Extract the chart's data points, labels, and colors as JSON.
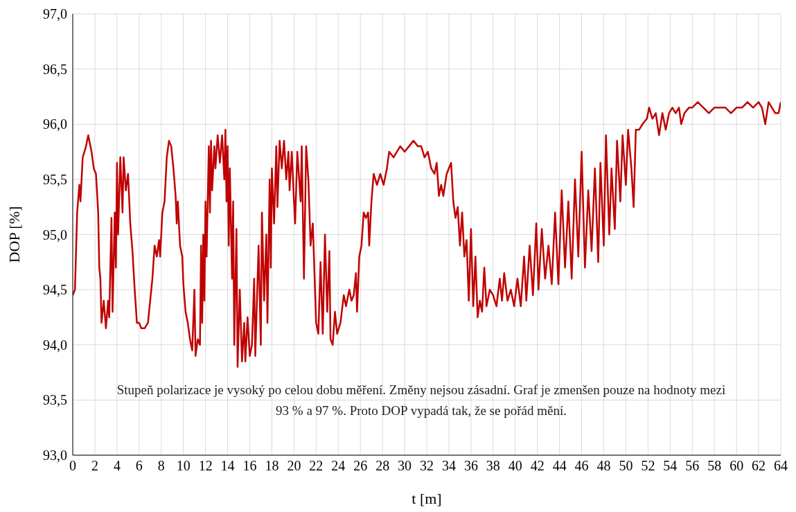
{
  "chart_data": {
    "type": "line",
    "xlabel": "t [m]",
    "ylabel": "DOP [%]",
    "annotations": [
      "Stupeň polarizace je vysoký po celou dobu měření. Změny nejsou zásadní. Graf je zmenšen pouze na hodnoty mezi 93 % a 97 %. Proto DOP vypadá tak, že se pořád mění."
    ],
    "xlim": [
      0,
      64
    ],
    "xticks": [
      0,
      2,
      4,
      6,
      8,
      10,
      12,
      14,
      16,
      18,
      20,
      22,
      24,
      26,
      28,
      30,
      32,
      34,
      36,
      38,
      40,
      42,
      44,
      46,
      48,
      50,
      52,
      54,
      56,
      58,
      60,
      62,
      64
    ],
    "ylim": [
      93,
      97
    ],
    "yticks": [
      {
        "value": 93,
        "label": "93,0"
      },
      {
        "value": 93.5,
        "label": "93,5"
      },
      {
        "value": 94,
        "label": "94,0"
      },
      {
        "value": 94.5,
        "label": "94,5"
      },
      {
        "value": 95,
        "label": "95,0"
      },
      {
        "value": 95.5,
        "label": "95,5"
      },
      {
        "value": 96,
        "label": "96,0"
      },
      {
        "value": 96.5,
        "label": "96,5"
      },
      {
        "value": 97,
        "label": "97,0"
      }
    ],
    "grid": true,
    "marker": "none",
    "line_style": "solid",
    "x": [
      0,
      0.2,
      0.4,
      0.6,
      0.7,
      0.9,
      1.2,
      1.4,
      1.7,
      1.9,
      2.1,
      2.3,
      2.4,
      2.5,
      2.6,
      2.8,
      3.0,
      3.2,
      3.3,
      3.5,
      3.6,
      3.8,
      3.9,
      4.0,
      4.1,
      4.3,
      4.5,
      4.6,
      4.8,
      5.0,
      5.2,
      5.4,
      5.6,
      5.8,
      6.0,
      6.2,
      6.5,
      6.8,
      7.0,
      7.2,
      7.4,
      7.6,
      7.8,
      7.9,
      8.1,
      8.3,
      8.5,
      8.7,
      8.9,
      9.1,
      9.3,
      9.4,
      9.5,
      9.7,
      9.9,
      10.0,
      10.2,
      10.4,
      10.6,
      10.8,
      11.0,
      11.1,
      11.3,
      11.5,
      11.6,
      11.7,
      11.8,
      11.9,
      12.0,
      12.1,
      12.3,
      12.4,
      12.5,
      12.6,
      12.8,
      12.9,
      13.1,
      13.3,
      13.5,
      13.7,
      13.8,
      13.9,
      14.0,
      14.1,
      14.2,
      14.4,
      14.5,
      14.6,
      14.8,
      14.9,
      15.1,
      15.3,
      15.5,
      15.6,
      15.8,
      16.0,
      16.2,
      16.4,
      16.5,
      16.8,
      17.0,
      17.1,
      17.3,
      17.5,
      17.6,
      17.8,
      17.9,
      18.0,
      18.2,
      18.4,
      18.5,
      18.7,
      18.9,
      19.1,
      19.3,
      19.5,
      19.6,
      19.8,
      20.0,
      20.1,
      20.3,
      20.6,
      20.7,
      20.9,
      21.1,
      21.3,
      21.5,
      21.7,
      22.0,
      22.2,
      22.4,
      22.6,
      22.8,
      23.0,
      23.2,
      23.3,
      23.5,
      23.7,
      23.9,
      24.2,
      24.5,
      24.7,
      25.0,
      25.2,
      25.4,
      25.6,
      25.7,
      25.9,
      26.1,
      26.3,
      26.5,
      26.7,
      26.8,
      27.0,
      27.2,
      27.5,
      27.8,
      28.1,
      28.4,
      28.6,
      29.0,
      29.3,
      29.6,
      30.0,
      30.4,
      30.8,
      31.2,
      31.5,
      31.8,
      32.1,
      32.4,
      32.7,
      32.9,
      33.1,
      33.3,
      33.5,
      33.8,
      34.0,
      34.2,
      34.4,
      34.6,
      34.8,
      35.0,
      35.2,
      35.4,
      35.6,
      35.8,
      36.0,
      36.2,
      36.4,
      36.6,
      36.8,
      37.0,
      37.2,
      37.4,
      37.7,
      38.0,
      38.3,
      38.6,
      38.8,
      39.0,
      39.3,
      39.6,
      39.9,
      40.2,
      40.5,
      40.8,
      41.0,
      41.3,
      41.6,
      41.9,
      42.1,
      42.4,
      42.7,
      43.0,
      43.3,
      43.6,
      43.9,
      44.2,
      44.5,
      44.8,
      45.1,
      45.4,
      45.7,
      46.0,
      46.3,
      46.6,
      46.9,
      47.2,
      47.5,
      47.7,
      48.0,
      48.2,
      48.5,
      48.7,
      49.0,
      49.2,
      49.5,
      49.7,
      50.0,
      50.2,
      50.5,
      50.7,
      50.9,
      51.2,
      51.5,
      51.9,
      52.1,
      52.4,
      52.7,
      53.0,
      53.3,
      53.6,
      53.9,
      54.2,
      54.5,
      54.8,
      55.0,
      55.3,
      55.7,
      56.0,
      56.5,
      57.0,
      57.5,
      58.0,
      58.5,
      59.0,
      59.5,
      60.0,
      60.5,
      61.0,
      61.5,
      62.0,
      62.3,
      62.6,
      62.9,
      63.2,
      63.5,
      63.8,
      64.0
    ],
    "series": [
      {
        "color": "#c00000",
        "values": [
          94.45,
          94.5,
          95.2,
          95.45,
          95.3,
          95.7,
          95.8,
          95.9,
          95.75,
          95.6,
          95.55,
          95.2,
          94.7,
          94.6,
          94.2,
          94.4,
          94.15,
          94.4,
          94.25,
          95.15,
          94.3,
          95.2,
          94.7,
          95.65,
          95.0,
          95.7,
          95.2,
          95.7,
          95.4,
          95.55,
          95.1,
          94.85,
          94.5,
          94.2,
          94.2,
          94.15,
          94.15,
          94.2,
          94.4,
          94.6,
          94.9,
          94.8,
          94.95,
          94.8,
          95.2,
          95.3,
          95.7,
          95.85,
          95.8,
          95.6,
          95.35,
          95.1,
          95.3,
          94.9,
          94.8,
          94.55,
          94.3,
          94.2,
          94.05,
          93.95,
          94.5,
          93.9,
          94.05,
          94.0,
          94.9,
          94.2,
          95.0,
          94.4,
          95.3,
          94.8,
          95.8,
          95.2,
          95.85,
          95.4,
          95.8,
          95.6,
          95.9,
          95.65,
          95.9,
          95.5,
          95.95,
          95.3,
          95.8,
          94.9,
          95.6,
          94.6,
          95.3,
          94.0,
          95.05,
          93.8,
          94.5,
          93.85,
          94.2,
          93.85,
          94.25,
          93.9,
          94.0,
          94.6,
          93.9,
          94.9,
          94.0,
          95.2,
          94.4,
          95.0,
          94.2,
          95.5,
          94.7,
          95.6,
          95.1,
          95.8,
          95.25,
          95.85,
          95.6,
          95.85,
          95.5,
          95.75,
          95.4,
          95.75,
          95.3,
          95.1,
          95.75,
          95.3,
          95.8,
          94.6,
          95.8,
          95.5,
          94.9,
          95.1,
          94.2,
          94.1,
          94.75,
          94.1,
          95.0,
          94.3,
          94.85,
          94.05,
          94.0,
          94.3,
          94.1,
          94.2,
          94.45,
          94.35,
          94.5,
          94.4,
          94.45,
          94.65,
          94.3,
          94.8,
          94.9,
          95.2,
          95.15,
          95.2,
          94.9,
          95.3,
          95.55,
          95.45,
          95.55,
          95.45,
          95.6,
          95.75,
          95.7,
          95.75,
          95.8,
          95.75,
          95.8,
          95.85,
          95.8,
          95.8,
          95.7,
          95.75,
          95.6,
          95.55,
          95.65,
          95.35,
          95.45,
          95.35,
          95.55,
          95.6,
          95.65,
          95.3,
          95.15,
          95.25,
          94.9,
          95.2,
          94.8,
          94.95,
          94.4,
          95.05,
          94.35,
          94.8,
          94.25,
          94.4,
          94.3,
          94.7,
          94.35,
          94.5,
          94.45,
          94.35,
          94.6,
          94.4,
          94.65,
          94.4,
          94.5,
          94.35,
          94.6,
          94.35,
          94.8,
          94.4,
          94.9,
          94.45,
          95.1,
          94.5,
          95.05,
          94.6,
          94.9,
          94.55,
          95.2,
          94.55,
          95.4,
          94.7,
          95.3,
          94.6,
          95.5,
          94.8,
          95.75,
          94.7,
          95.4,
          94.85,
          95.6,
          94.75,
          95.65,
          94.9,
          95.9,
          95.0,
          95.6,
          95.05,
          95.85,
          95.3,
          95.9,
          95.45,
          95.95,
          95.6,
          95.25,
          95.95,
          95.95,
          96.0,
          96.05,
          96.15,
          96.05,
          96.1,
          95.9,
          96.1,
          95.95,
          96.1,
          96.15,
          96.1,
          96.15,
          96.0,
          96.1,
          96.15,
          96.15,
          96.2,
          96.15,
          96.1,
          96.15,
          96.15,
          96.15,
          96.1,
          96.15,
          96.15,
          96.2,
          96.15,
          96.2,
          96.15,
          96.0,
          96.2,
          96.15,
          96.1,
          96.1,
          96.2
        ]
      }
    ]
  }
}
